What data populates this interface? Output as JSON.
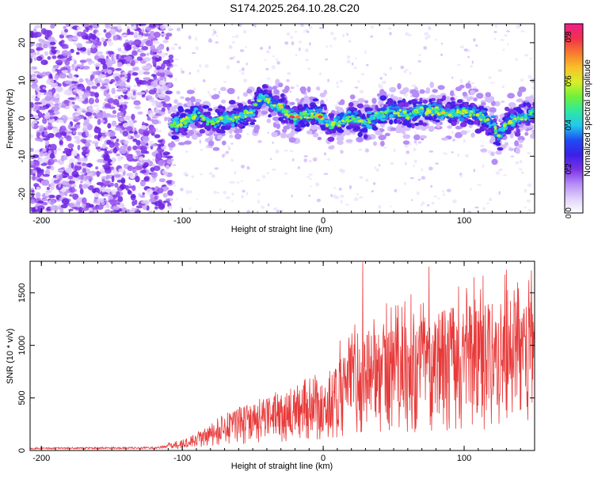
{
  "title": "S174.2025.264.10.28.C20",
  "colors": {
    "signal": "#e83a3a",
    "axis": "#000000",
    "noise": "#9a55f0",
    "noise_light": "#d9c2fb"
  },
  "chart_data": [
    {
      "type": "heatmap",
      "title": "S174.2025.264.10.28.C20",
      "xlabel": "Height of straight line (km)",
      "ylabel": "Frequency (Hz)",
      "xlim": [
        -208,
        150
      ],
      "ylim": [
        -25,
        25
      ],
      "x_ticks": [
        -200,
        -100,
        0,
        100
      ],
      "y_ticks": [
        -20,
        -10,
        0,
        10,
        20
      ],
      "x_tick_labels": [
        "-200",
        "-100",
        "0",
        "100"
      ],
      "y_tick_labels": [
        "-20",
        "-10",
        "0",
        "10",
        "20"
      ],
      "ridge": {
        "x": [
          -108,
          -100,
          -90,
          -80,
          -70,
          -60,
          -50,
          -45,
          -40,
          -35,
          -30,
          -25,
          -20,
          -15,
          -10,
          -5,
          0,
          5,
          10,
          20,
          30,
          40,
          50,
          60,
          70,
          80,
          90,
          100,
          110,
          115,
          120,
          125,
          130,
          140,
          150
        ],
        "y": [
          -2,
          -1,
          1,
          -1,
          0,
          0,
          2,
          5,
          5,
          3,
          3,
          1,
          0,
          1,
          1,
          1,
          0,
          -2,
          -1,
          0,
          -1,
          1,
          2,
          1,
          2,
          2,
          1,
          2,
          1,
          0,
          -1,
          -5,
          -1,
          0,
          2
        ]
      },
      "colorbar": {
        "label": "Normalized spectral amplitude",
        "range": [
          0,
          0.86
        ],
        "ticks": [
          0.0,
          0.2,
          0.4,
          0.6,
          0.8
        ],
        "tick_labels": [
          "0.0",
          "0.2",
          "0.4",
          "0.6",
          "0.8"
        ],
        "colors": [
          "#ffffff",
          "#e0d0fb",
          "#b58cf6",
          "#7a33e6",
          "#3c1fe8",
          "#1f4cf2",
          "#22c8ee",
          "#2fe8a0",
          "#6ff13a",
          "#d9ef28",
          "#f8c02a",
          "#f77a2d",
          "#f0304e",
          "#f01d8b"
        ]
      }
    },
    {
      "type": "line",
      "xlabel": "Height of straight line (km)",
      "ylabel": "SNR (10 * v/v)",
      "xlim": [
        -208,
        150
      ],
      "ylim": [
        0,
        1800
      ],
      "x_ticks": [
        -200,
        -100,
        0,
        100
      ],
      "y_ticks": [
        0,
        500,
        1000,
        1500
      ],
      "x_tick_labels": [
        "-200",
        "-100",
        "0",
        "100"
      ],
      "y_tick_labels": [
        "0",
        "500",
        "1000",
        "1500"
      ],
      "envelope": {
        "x": [
          -208,
          -150,
          -120,
          -110,
          -100,
          -90,
          -80,
          -70,
          -60,
          -50,
          -40,
          -30,
          -20,
          -10,
          0,
          10,
          20,
          30,
          40,
          50,
          60,
          70,
          80,
          90,
          100,
          110,
          120,
          130,
          140,
          150
        ],
        "y": [
          25,
          30,
          30,
          50,
          70,
          120,
          170,
          240,
          280,
          300,
          360,
          380,
          400,
          480,
          500,
          580,
          700,
          760,
          780,
          800,
          820,
          850,
          870,
          900,
          920,
          920,
          940,
          960,
          960,
          960
        ]
      },
      "peaks": [
        {
          "x": 28,
          "y": 1790
        },
        {
          "x": 75,
          "y": 1750
        },
        {
          "x": 130,
          "y": 1720
        },
        {
          "x": 138,
          "y": 1600
        },
        {
          "x": 96,
          "y": 1560
        },
        {
          "x": 102,
          "y": 1460
        },
        {
          "x": 58,
          "y": 1420
        },
        {
          "x": 45,
          "y": 1400
        },
        {
          "x": 115,
          "y": 1380
        },
        {
          "x": 64,
          "y": 1300
        },
        {
          "x": 82,
          "y": 1300
        },
        {
          "x": 148,
          "y": 1300
        }
      ]
    }
  ]
}
